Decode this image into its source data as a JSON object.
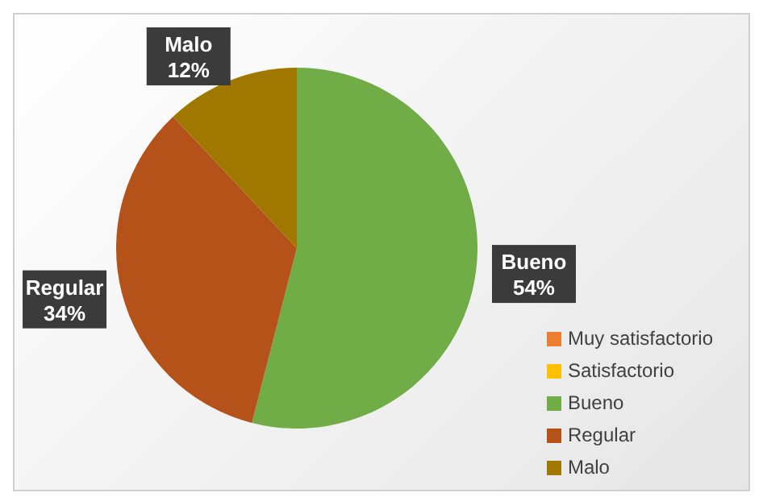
{
  "chart_data": {
    "type": "pie",
    "categories": [
      "Muy satisfactorio",
      "Satisfactorio",
      "Bueno",
      "Regular",
      "Malo"
    ],
    "values": [
      0,
      0,
      54,
      34,
      12
    ],
    "colors": [
      "#ed7d31",
      "#ffc000",
      "#70ad47",
      "#b5521a",
      "#a07800"
    ],
    "value_labels": [
      null,
      null,
      "54%",
      "34%",
      "12%"
    ],
    "legend": "bottom right"
  }
}
